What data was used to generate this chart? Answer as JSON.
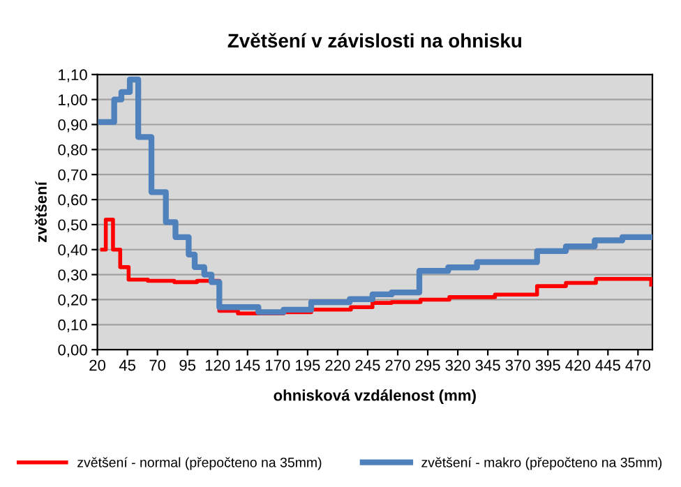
{
  "chart_data": {
    "type": "step",
    "title": "Zvětšení v závislosti na ohnisku",
    "xlabel": "ohnisková vzdálenost (mm)",
    "ylabel": "zvětšení",
    "xlim": [
      20,
      482
    ],
    "ylim": [
      0,
      1.1
    ],
    "xticks": [
      20,
      45,
      70,
      95,
      120,
      145,
      170,
      195,
      220,
      245,
      270,
      295,
      320,
      345,
      370,
      395,
      420,
      445,
      470
    ],
    "yticks": [
      {
        "value": 0,
        "label": "0,00"
      },
      {
        "value": 0.1,
        "label": "0,10"
      },
      {
        "value": 0.2,
        "label": "0,20"
      },
      {
        "value": 0.3,
        "label": "0,30"
      },
      {
        "value": 0.4,
        "label": "0,40"
      },
      {
        "value": 0.5,
        "label": "0,50"
      },
      {
        "value": 0.6,
        "label": "0,60"
      },
      {
        "value": 0.7,
        "label": "0,70"
      },
      {
        "value": 0.8,
        "label": "0,80"
      },
      {
        "value": 0.9,
        "label": "0,90"
      },
      {
        "value": 1.0,
        "label": "1,00"
      },
      {
        "value": 1.1,
        "label": "1,10"
      }
    ],
    "grid": "y",
    "legend": "bottom",
    "marker": "none",
    "line_style": "solid",
    "series": [
      {
        "name": "zvětšení - normal (přepočteno na 35mm)",
        "color": "#ff0000",
        "x": [
          24,
          27,
          33,
          39,
          46,
          62,
          84,
          103,
          121.5,
          137,
          175,
          198,
          231,
          249,
          265,
          289,
          313,
          351,
          386,
          410,
          435,
          481
        ],
        "values": [
          0.4,
          0.52,
          0.4,
          0.33,
          0.28,
          0.275,
          0.27,
          0.275,
          0.155,
          0.145,
          0.15,
          0.16,
          0.17,
          0.187,
          0.19,
          0.2,
          0.21,
          0.22,
          0.254,
          0.267,
          0.283,
          0.26
        ]
      },
      {
        "name": "zvětšení - makro (přepočteno na 35mm)",
        "color": "#4f81bd",
        "x": [
          23,
          34,
          40,
          47,
          54,
          65,
          77,
          85,
          96,
          101,
          109,
          115,
          121.5,
          154,
          175,
          198,
          230,
          249,
          265,
          288,
          312,
          336,
          386,
          410,
          434,
          457,
          481
        ],
        "values": [
          0.91,
          1.0,
          1.03,
          1.08,
          0.85,
          0.63,
          0.51,
          0.45,
          0.38,
          0.33,
          0.3,
          0.27,
          0.17,
          0.15,
          0.16,
          0.19,
          0.202,
          0.221,
          0.229,
          0.315,
          0.329,
          0.35,
          0.394,
          0.413,
          0.437,
          0.45,
          0.45
        ]
      }
    ]
  }
}
